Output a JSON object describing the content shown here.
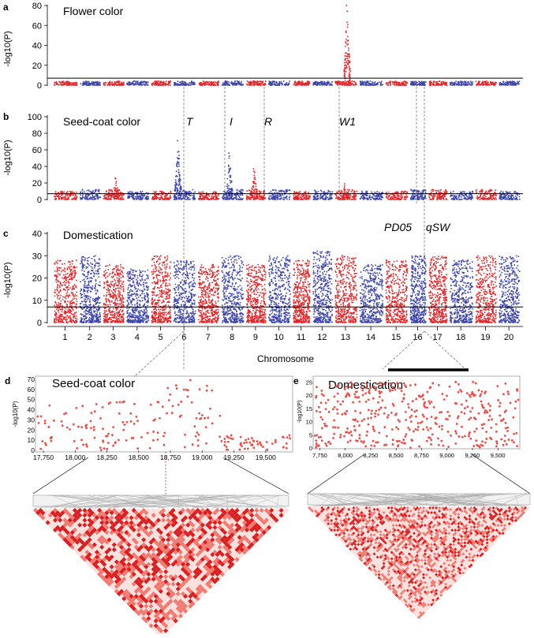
{
  "chart_data": [
    {
      "panel": "a",
      "type": "scatter",
      "subtype": "manhattan",
      "title": "Flower color",
      "xlabel": "",
      "ylabel": "-log10(P)",
      "ylim": [
        0,
        80
      ],
      "yticks": [
        "0",
        "20",
        "40",
        "60",
        "80"
      ],
      "threshold": 7,
      "series_colors": [
        "#e0262a",
        "#3c44a8"
      ],
      "chromosomes": [
        {
          "chr": 1,
          "base_max": 4
        },
        {
          "chr": 2,
          "base_max": 4
        },
        {
          "chr": 3,
          "base_max": 4
        },
        {
          "chr": 4,
          "base_max": 4
        },
        {
          "chr": 5,
          "base_max": 4
        },
        {
          "chr": 6,
          "base_max": 4
        },
        {
          "chr": 7,
          "base_max": 4
        },
        {
          "chr": 8,
          "base_max": 4
        },
        {
          "chr": 9,
          "base_max": 4
        },
        {
          "chr": 10,
          "base_max": 4
        },
        {
          "chr": 11,
          "base_max": 4
        },
        {
          "chr": 12,
          "base_max": 4
        },
        {
          "chr": 13,
          "base_max": 4,
          "peak": {
            "pos": 0.55,
            "value": 80
          }
        },
        {
          "chr": 14,
          "base_max": 4
        },
        {
          "chr": 15,
          "base_max": 4
        },
        {
          "chr": 16,
          "base_max": 4
        },
        {
          "chr": 17,
          "base_max": 4
        },
        {
          "chr": 18,
          "base_max": 4
        },
        {
          "chr": 19,
          "base_max": 4
        },
        {
          "chr": 20,
          "base_max": 4
        }
      ]
    },
    {
      "panel": "b",
      "type": "scatter",
      "subtype": "manhattan",
      "title": "Seed-coat color",
      "xlabel": "",
      "ylabel": "-log10(P)",
      "ylim": [
        0,
        100
      ],
      "yticks": [
        "0",
        "20",
        "40",
        "60",
        "80",
        "100"
      ],
      "threshold": 7,
      "series_colors": [
        "#e0262a",
        "#3c44a8"
      ],
      "chromosomes": [
        {
          "chr": 1,
          "base_max": 10
        },
        {
          "chr": 2,
          "base_max": 12
        },
        {
          "chr": 3,
          "base_max": 12,
          "peak": {
            "pos": 0.6,
            "value": 26
          }
        },
        {
          "chr": 4,
          "base_max": 10
        },
        {
          "chr": 5,
          "base_max": 10
        },
        {
          "chr": 6,
          "base_max": 12,
          "peak": {
            "pos": 0.2,
            "value": 71
          }
        },
        {
          "chr": 7,
          "base_max": 10
        },
        {
          "chr": 8,
          "base_max": 12,
          "peak": {
            "pos": 0.35,
            "value": 56
          }
        },
        {
          "chr": 9,
          "base_max": 12,
          "peak": {
            "pos": 0.4,
            "value": 37
          }
        },
        {
          "chr": 10,
          "base_max": 12
        },
        {
          "chr": 11,
          "base_max": 10
        },
        {
          "chr": 12,
          "base_max": 12
        },
        {
          "chr": 13,
          "base_max": 12,
          "peak": {
            "pos": 0.45,
            "value": 19
          }
        },
        {
          "chr": 14,
          "base_max": 10
        },
        {
          "chr": 15,
          "base_max": 10
        },
        {
          "chr": 16,
          "base_max": 12
        },
        {
          "chr": 17,
          "base_max": 12
        },
        {
          "chr": 18,
          "base_max": 10
        },
        {
          "chr": 19,
          "base_max": 12
        },
        {
          "chr": 20,
          "base_max": 10
        }
      ],
      "loci": [
        "T",
        "I",
        "R",
        "W1"
      ]
    },
    {
      "panel": "c",
      "type": "scatter",
      "subtype": "manhattan",
      "title": "Domestication",
      "xlabel": "Chromosome",
      "ylabel": "-log10(P)",
      "ylim": [
        0,
        40
      ],
      "yticks": [
        "0",
        "10",
        "20",
        "30",
        "40"
      ],
      "threshold": 7,
      "series_colors": [
        "#e0262a",
        "#3c44a8"
      ],
      "categories": [
        "1",
        "2",
        "3",
        "4",
        "5",
        "6",
        "7",
        "8",
        "9",
        "10",
        "11",
        "12",
        "13",
        "14",
        "15",
        "16",
        "17",
        "18",
        "19",
        "20"
      ],
      "chromosomes": [
        {
          "chr": 1,
          "base_max": 28
        },
        {
          "chr": 2,
          "base_max": 30
        },
        {
          "chr": 3,
          "base_max": 26
        },
        {
          "chr": 4,
          "base_max": 24
        },
        {
          "chr": 5,
          "base_max": 30
        },
        {
          "chr": 6,
          "base_max": 28
        },
        {
          "chr": 7,
          "base_max": 26
        },
        {
          "chr": 8,
          "base_max": 30
        },
        {
          "chr": 9,
          "base_max": 26
        },
        {
          "chr": 10,
          "base_max": 30
        },
        {
          "chr": 11,
          "base_max": 28
        },
        {
          "chr": 12,
          "base_max": 32
        },
        {
          "chr": 13,
          "base_max": 30
        },
        {
          "chr": 14,
          "base_max": 26
        },
        {
          "chr": 15,
          "base_max": 28
        },
        {
          "chr": 16,
          "base_max": 30
        },
        {
          "chr": 17,
          "base_max": 30
        },
        {
          "chr": 18,
          "base_max": 28
        },
        {
          "chr": 19,
          "base_max": 30
        },
        {
          "chr": 20,
          "base_max": 30
        }
      ],
      "loci": [
        "PD05",
        "qSW"
      ]
    },
    {
      "panel": "d",
      "type": "scatter",
      "title": "Seed-coat color",
      "xlabel": "",
      "ylabel": "-log10(P)",
      "xlim": [
        17700,
        19700
      ],
      "ylim": [
        0,
        70
      ],
      "xticks": [
        "17,750",
        "18,000",
        "18,250",
        "18,500",
        "18,750",
        "19,000",
        "19,250",
        "19,500"
      ],
      "yticks": [
        "0",
        "10",
        "20",
        "30",
        "40",
        "50",
        "60",
        "70"
      ],
      "point_color": "#e8504a",
      "regions": [
        {
          "from": 17700,
          "to": 18700,
          "max": 50
        },
        {
          "from": 18700,
          "to": 19150,
          "max": 70
        },
        {
          "from": 19150,
          "to": 19700,
          "max": 15
        }
      ],
      "ld_heatmap": "pairwise LD triangle"
    },
    {
      "panel": "e",
      "type": "scatter",
      "title": "Domestication",
      "xlabel": "",
      "ylabel": "-log10(P)",
      "xlim": [
        7700,
        9700
      ],
      "ylim": [
        0,
        26
      ],
      "xticks": [
        "7,750",
        "8,000",
        "8,250",
        "8,500",
        "8,750",
        "9,000",
        "9,250",
        "9,500"
      ],
      "yticks": [
        "0",
        "5",
        "10",
        "15",
        "20",
        "25"
      ],
      "point_color": "#e8504a",
      "regions": [
        {
          "from": 7700,
          "to": 9700,
          "max": 25
        }
      ],
      "ld_heatmap": "pairwise LD triangle"
    }
  ]
}
